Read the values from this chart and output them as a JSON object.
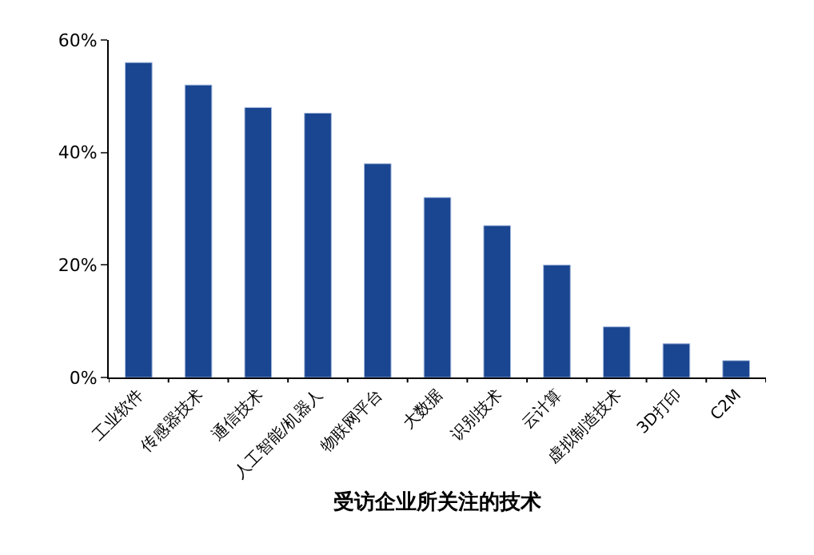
{
  "chart_data": {
    "type": "bar",
    "xlabel": "受访企业所关注的技术",
    "categories": [
      "工业软件",
      "传感器技术",
      "通信技术",
      "人工智能/机器人",
      "物联网平台",
      "大数据",
      "识别技术",
      "云计算",
      "虚拟制造技术",
      "3D打印",
      "C2M"
    ],
    "values": [
      56,
      52,
      48,
      47,
      38,
      32,
      27,
      20,
      9,
      6,
      3
    ],
    "color": "#1a4590",
    "ylim": [
      0,
      60
    ],
    "yticks": [
      {
        "value": 0,
        "label": "0%"
      },
      {
        "value": 20,
        "label": "20%"
      },
      {
        "value": 40,
        "label": "40%"
      },
      {
        "value": 60,
        "label": "60%"
      }
    ],
    "grid": false
  }
}
